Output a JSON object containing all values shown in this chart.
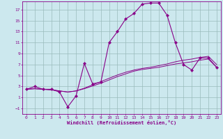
{
  "xlabel": "Windchill (Refroidissement éolien,°C)",
  "bg_color": "#cce8ee",
  "line_color": "#880088",
  "grid_color": "#99bbbb",
  "xlim": [
    -0.5,
    23.5
  ],
  "ylim": [
    -2,
    18.5
  ],
  "xticks": [
    0,
    1,
    2,
    3,
    4,
    5,
    6,
    7,
    8,
    9,
    10,
    11,
    12,
    13,
    14,
    15,
    16,
    17,
    18,
    19,
    20,
    21,
    22,
    23
  ],
  "yticks": [
    -1,
    1,
    3,
    5,
    7,
    9,
    11,
    13,
    15,
    17
  ],
  "lines": [
    {
      "x": [
        0,
        1,
        2,
        3,
        4,
        5,
        6,
        7,
        8,
        9,
        10,
        11,
        12,
        13,
        14,
        15,
        16,
        17,
        18,
        19,
        20,
        21,
        22,
        23
      ],
      "y": [
        2.5,
        3.0,
        2.5,
        2.5,
        2.0,
        -0.7,
        1.3,
        7.2,
        3.5,
        3.8,
        11.0,
        13.0,
        15.3,
        16.3,
        18.0,
        18.2,
        18.2,
        16.0,
        11.0,
        7.0,
        6.0,
        8.2,
        8.2,
        6.5
      ],
      "marker": "D",
      "markersize": 2.2
    },
    {
      "x": [
        0,
        1,
        2,
        3,
        4,
        5,
        6,
        7,
        8,
        9,
        10,
        11,
        12,
        13,
        14,
        15,
        16,
        17,
        18,
        19,
        20,
        21,
        22,
        23
      ],
      "y": [
        2.5,
        2.6,
        2.5,
        2.4,
        2.2,
        2.0,
        2.2,
        2.6,
        3.1,
        3.6,
        4.2,
        4.8,
        5.3,
        5.8,
        6.1,
        6.3,
        6.5,
        6.8,
        7.1,
        7.3,
        7.5,
        7.8,
        8.0,
        6.5
      ],
      "marker": null,
      "markersize": 0
    },
    {
      "x": [
        0,
        1,
        2,
        3,
        4,
        5,
        6,
        7,
        8,
        9,
        10,
        11,
        12,
        13,
        14,
        15,
        16,
        17,
        18,
        19,
        20,
        21,
        22,
        23
      ],
      "y": [
        2.5,
        2.6,
        2.5,
        2.4,
        2.2,
        2.0,
        2.2,
        2.7,
        3.3,
        3.9,
        4.5,
        5.1,
        5.6,
        6.0,
        6.3,
        6.5,
        6.8,
        7.1,
        7.5,
        7.8,
        8.0,
        8.3,
        8.5,
        7.0
      ],
      "marker": null,
      "markersize": 0
    }
  ]
}
